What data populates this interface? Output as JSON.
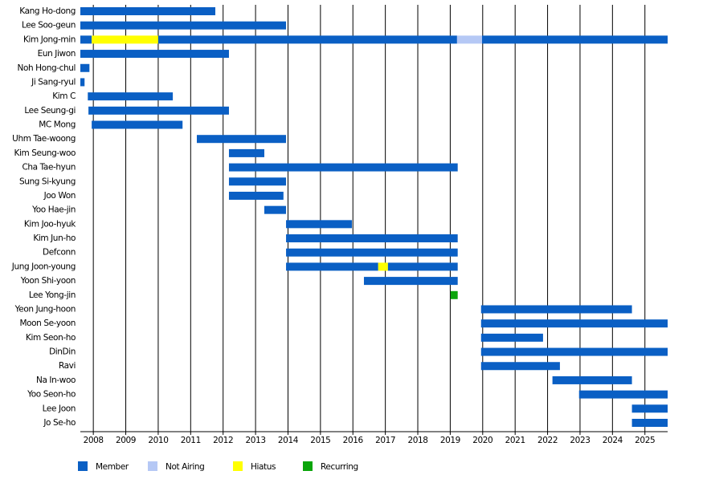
{
  "chart_data": {
    "type": "timeline",
    "xlim": [
      2007.6,
      2025.7
    ],
    "xticks": [
      2008,
      2009,
      2010,
      2011,
      2012,
      2013,
      2014,
      2015,
      2016,
      2017,
      2018,
      2019,
      2020,
      2021,
      2022,
      2023,
      2024,
      2025
    ],
    "grid": true,
    "legend": "bottom-left",
    "series": [
      {
        "name": "Member",
        "color": "#0a5fc4"
      },
      {
        "name": "Not Airing",
        "color": "#b5c8f5"
      },
      {
        "name": "Hiatus",
        "color": "#ffff00"
      },
      {
        "name": "Recurring",
        "color": "#0aa50a"
      }
    ],
    "rows": [
      {
        "name": "Kang Ho-dong",
        "periods": [
          {
            "status": "Member",
            "start": 2007.6,
            "end": 2011.76
          }
        ]
      },
      {
        "name": "Lee Soo-geun",
        "periods": [
          {
            "status": "Member",
            "start": 2007.6,
            "end": 2013.94
          }
        ]
      },
      {
        "name": "Kim Jong-min",
        "periods": [
          {
            "status": "Member",
            "start": 2007.6,
            "end": 2007.95
          },
          {
            "status": "Hiatus",
            "start": 2007.95,
            "end": 2010.0
          },
          {
            "status": "Member",
            "start": 2010.0,
            "end": 2019.21
          },
          {
            "status": "Not Airing",
            "start": 2019.21,
            "end": 2019.98
          },
          {
            "status": "Member",
            "start": 2019.98,
            "end": 2025.7
          }
        ]
      },
      {
        "name": "Eun Jiwon",
        "periods": [
          {
            "status": "Member",
            "start": 2007.6,
            "end": 2012.18
          }
        ]
      },
      {
        "name": "Noh Hong-chul",
        "periods": [
          {
            "status": "Member",
            "start": 2007.6,
            "end": 2007.88
          }
        ]
      },
      {
        "name": "Ji Sang-ryul",
        "periods": [
          {
            "status": "Member",
            "start": 2007.6,
            "end": 2007.73
          }
        ]
      },
      {
        "name": "Kim C",
        "periods": [
          {
            "status": "Member",
            "start": 2007.83,
            "end": 2010.45
          }
        ]
      },
      {
        "name": "Lee Seung-gi",
        "periods": [
          {
            "status": "Member",
            "start": 2007.85,
            "end": 2012.18
          }
        ]
      },
      {
        "name": "MC Mong",
        "periods": [
          {
            "status": "Member",
            "start": 2007.95,
            "end": 2010.75
          }
        ]
      },
      {
        "name": "Uhm Tae-woong",
        "periods": [
          {
            "status": "Member",
            "start": 2011.19,
            "end": 2013.94
          }
        ]
      },
      {
        "name": "Kim Seung-woo",
        "periods": [
          {
            "status": "Member",
            "start": 2012.18,
            "end": 2013.27
          }
        ]
      },
      {
        "name": "Cha Tae-hyun",
        "periods": [
          {
            "status": "Member",
            "start": 2012.18,
            "end": 2019.23
          }
        ]
      },
      {
        "name": "Sung Si-kyung",
        "periods": [
          {
            "status": "Member",
            "start": 2012.18,
            "end": 2013.94
          }
        ]
      },
      {
        "name": "Joo Won",
        "periods": [
          {
            "status": "Member",
            "start": 2012.18,
            "end": 2013.86
          }
        ]
      },
      {
        "name": "Yoo Hae-jin",
        "periods": [
          {
            "status": "Member",
            "start": 2013.27,
            "end": 2013.94
          }
        ]
      },
      {
        "name": "Kim Joo-hyuk",
        "periods": [
          {
            "status": "Member",
            "start": 2013.94,
            "end": 2015.97
          }
        ]
      },
      {
        "name": "Kim Jun-ho",
        "periods": [
          {
            "status": "Member",
            "start": 2013.94,
            "end": 2019.23
          }
        ]
      },
      {
        "name": "Defconn",
        "periods": [
          {
            "status": "Member",
            "start": 2013.94,
            "end": 2019.23
          }
        ]
      },
      {
        "name": "Jung Joon-young",
        "periods": [
          {
            "status": "Member",
            "start": 2013.94,
            "end": 2016.78
          },
          {
            "status": "Hiatus",
            "start": 2016.78,
            "end": 2017.08
          },
          {
            "status": "Member",
            "start": 2017.08,
            "end": 2019.23
          }
        ]
      },
      {
        "name": "Yoon Shi-yoon",
        "periods": [
          {
            "status": "Member",
            "start": 2016.34,
            "end": 2019.23
          }
        ]
      },
      {
        "name": "Lee Yong-jin",
        "periods": [
          {
            "status": "Recurring",
            "start": 2019.01,
            "end": 2019.23
          }
        ]
      },
      {
        "name": "Yeon Jung-hoon",
        "periods": [
          {
            "status": "Member",
            "start": 2019.95,
            "end": 2024.6
          }
        ]
      },
      {
        "name": "Moon Se-yoon",
        "periods": [
          {
            "status": "Member",
            "start": 2019.95,
            "end": 2025.7
          }
        ]
      },
      {
        "name": "Kim Seon-ho",
        "periods": [
          {
            "status": "Member",
            "start": 2019.95,
            "end": 2021.86
          }
        ]
      },
      {
        "name": "DinDin",
        "periods": [
          {
            "status": "Member",
            "start": 2019.95,
            "end": 2025.7
          }
        ]
      },
      {
        "name": "Ravi",
        "periods": [
          {
            "status": "Member",
            "start": 2019.95,
            "end": 2022.38
          }
        ]
      },
      {
        "name": "Na In-woo",
        "periods": [
          {
            "status": "Member",
            "start": 2022.15,
            "end": 2024.6
          }
        ]
      },
      {
        "name": "Yoo Seon-ho",
        "periods": [
          {
            "status": "Member",
            "start": 2022.97,
            "end": 2025.7
          }
        ]
      },
      {
        "name": "Lee Joon",
        "periods": [
          {
            "status": "Member",
            "start": 2024.6,
            "end": 2025.7
          }
        ]
      },
      {
        "name": "Jo Se-ho",
        "periods": [
          {
            "status": "Member",
            "start": 2024.6,
            "end": 2025.7
          }
        ]
      }
    ]
  }
}
